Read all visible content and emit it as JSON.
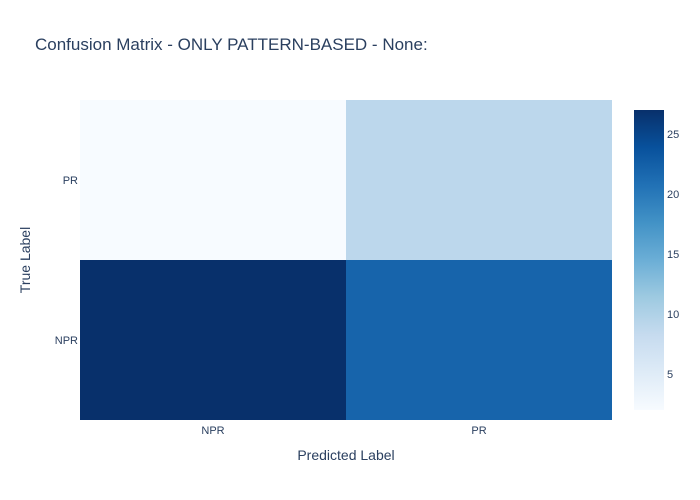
{
  "chart_data": {
    "type": "heatmap",
    "title": "Confusion Matrix - ONLY PATTERN-BASED - None:",
    "xlabel": "Predicted Label",
    "ylabel": "True Label",
    "x_categories": [
      "NPR",
      "PR"
    ],
    "y_categories": [
      "NPR",
      "PR"
    ],
    "z": [
      [
        27,
        22
      ],
      [
        2,
        9
      ]
    ],
    "colorscale": "Blues",
    "zlim": [
      2,
      27
    ],
    "colorbar_ticks": [
      5,
      10,
      15,
      20,
      25
    ],
    "legend": "colorbar right"
  }
}
